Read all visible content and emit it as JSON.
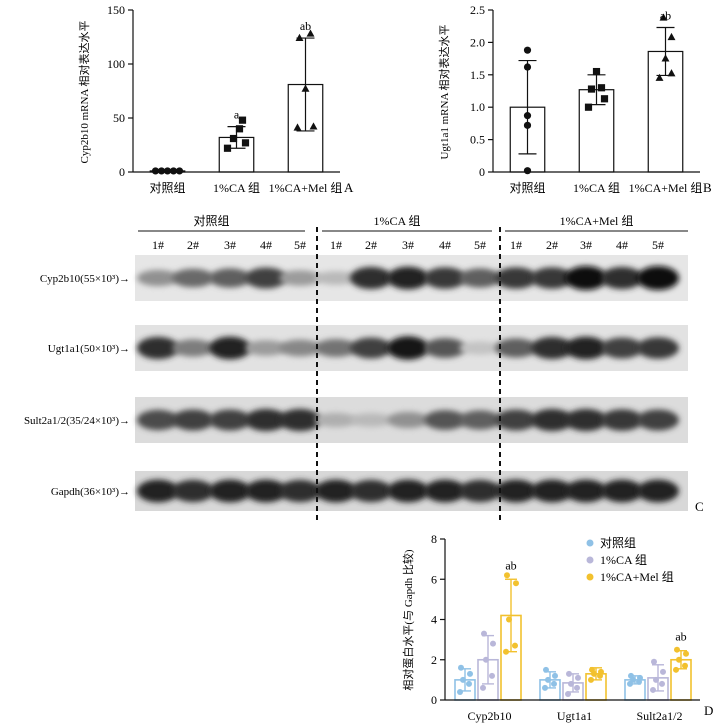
{
  "colors": {
    "control": "#8fc1e6",
    "ca": "#b9b7d9",
    "ca_mel": "#f2c12e",
    "ink": "#111111"
  },
  "chart_data": [
    {
      "id": "A",
      "type": "bar",
      "panel_letter": "A",
      "ylabel": "Cyp2b10 mRNA 相对表达水平",
      "ylim": [
        0,
        150
      ],
      "yticks": [
        0,
        50,
        100,
        150
      ],
      "categories": [
        "对照组",
        "1%CA 组",
        "1%CA+Mel 组"
      ],
      "values": [
        1,
        32,
        81
      ],
      "error": [
        0.6,
        10,
        43
      ],
      "markers": [
        "circle",
        "square",
        "triangle"
      ],
      "points": [
        [
          1,
          1,
          1,
          1,
          1
        ],
        [
          22,
          27,
          31,
          40,
          48
        ],
        [
          41,
          42,
          77,
          124,
          128
        ]
      ],
      "annotations": [
        "",
        "a",
        "ab"
      ]
    },
    {
      "id": "B",
      "type": "bar",
      "panel_letter": "B",
      "ylabel": "Ugt1a1 mRNA 相对表达水平",
      "ylim": [
        0,
        2.5
      ],
      "yticks": [
        0,
        0.5,
        1.0,
        1.5,
        2.0,
        2.5
      ],
      "yticklabels": [
        "0",
        "0.5",
        "1.0",
        "1.5",
        "2.0",
        "2.5"
      ],
      "categories": [
        "对照组",
        "1%CA 组",
        "1%CA+Mel 组"
      ],
      "values": [
        1.0,
        1.27,
        1.86
      ],
      "error": [
        0.72,
        0.23,
        0.37
      ],
      "markers": [
        "circle",
        "square",
        "triangle"
      ],
      "points": [
        [
          0.02,
          0.72,
          0.87,
          1.62,
          1.88
        ],
        [
          1.0,
          1.13,
          1.28,
          1.3,
          1.55
        ],
        [
          1.45,
          1.52,
          1.75,
          2.08,
          2.38
        ]
      ],
      "annotations": [
        "",
        "",
        "ab"
      ]
    },
    {
      "id": "D",
      "type": "bar",
      "panel_letter": "D",
      "ylabel": "相对蛋白水平(与 Gapdh 比较)",
      "ylim": [
        0,
        8
      ],
      "yticks": [
        0,
        2,
        4,
        6,
        8
      ],
      "categories": [
        "Cyp2b10",
        "Ugt1a1",
        "Sult2a1/2"
      ],
      "series": [
        {
          "name": "对照组",
          "values": [
            1.0,
            1.0,
            1.0
          ],
          "error": [
            0.55,
            0.4,
            0.2
          ],
          "points": [
            [
              0.4,
              0.8,
              1.0,
              1.3,
              1.6
            ],
            [
              0.6,
              0.8,
              1.0,
              1.2,
              1.5
            ],
            [
              0.8,
              0.9,
              1.0,
              1.1,
              1.2
            ]
          ]
        },
        {
          "name": "1%CA 组",
          "values": [
            2.0,
            0.85,
            1.1
          ],
          "error": [
            1.2,
            0.45,
            0.65
          ],
          "points": [
            [
              0.6,
              1.2,
              2.0,
              2.8,
              3.3
            ],
            [
              0.3,
              0.6,
              0.8,
              1.1,
              1.3
            ],
            [
              0.5,
              0.8,
              1.0,
              1.4,
              1.9
            ]
          ]
        },
        {
          "name": "1%CA+Mel 组",
          "values": [
            4.2,
            1.3,
            2.0
          ],
          "error": [
            1.8,
            0.3,
            0.45
          ],
          "points": [
            [
              2.4,
              2.7,
              4.0,
              5.8,
              6.2
            ],
            [
              1.0,
              1.2,
              1.3,
              1.4,
              1.5
            ],
            [
              1.5,
              1.7,
              2.0,
              2.3,
              2.5
            ]
          ]
        }
      ],
      "annotations": [
        {
          "category": "Cyp2b10",
          "text": "ab"
        },
        {
          "category": "Sult2a1/2",
          "text": "ab"
        }
      ]
    }
  ],
  "blot": {
    "panel_letter": "C",
    "groups": [
      "对照组",
      "1%CA 组",
      "1%CA+Mel 组"
    ],
    "lanes": [
      "1#",
      "2#",
      "3#",
      "4#",
      "5#"
    ],
    "bands": [
      {
        "label": "Cyp2b10(55×10³)→",
        "intensity": [
          0.35,
          0.55,
          0.6,
          0.75,
          0.3,
          0.15,
          0.85,
          0.9,
          0.8,
          0.6,
          0.8,
          0.8,
          1.0,
          0.85,
          1.0
        ]
      },
      {
        "label": "Ugt1a1(50×10³)→",
        "intensity": [
          0.85,
          0.45,
          0.9,
          0.3,
          0.4,
          0.5,
          0.75,
          0.95,
          0.65,
          0.1,
          0.6,
          0.85,
          0.9,
          0.75,
          0.8
        ]
      },
      {
        "label": "Sult2a1/2(35/24×10³)→",
        "intensity": [
          0.7,
          0.75,
          0.75,
          0.85,
          0.85,
          0.2,
          0.15,
          0.35,
          0.65,
          0.6,
          0.75,
          0.85,
          0.85,
          0.8,
          0.75
        ]
      },
      {
        "label": "Gapdh(36×10³)→",
        "intensity": [
          0.9,
          0.85,
          0.9,
          0.9,
          0.85,
          0.9,
          0.85,
          0.9,
          0.9,
          0.85,
          0.9,
          0.9,
          0.9,
          0.9,
          0.9
        ]
      }
    ]
  }
}
